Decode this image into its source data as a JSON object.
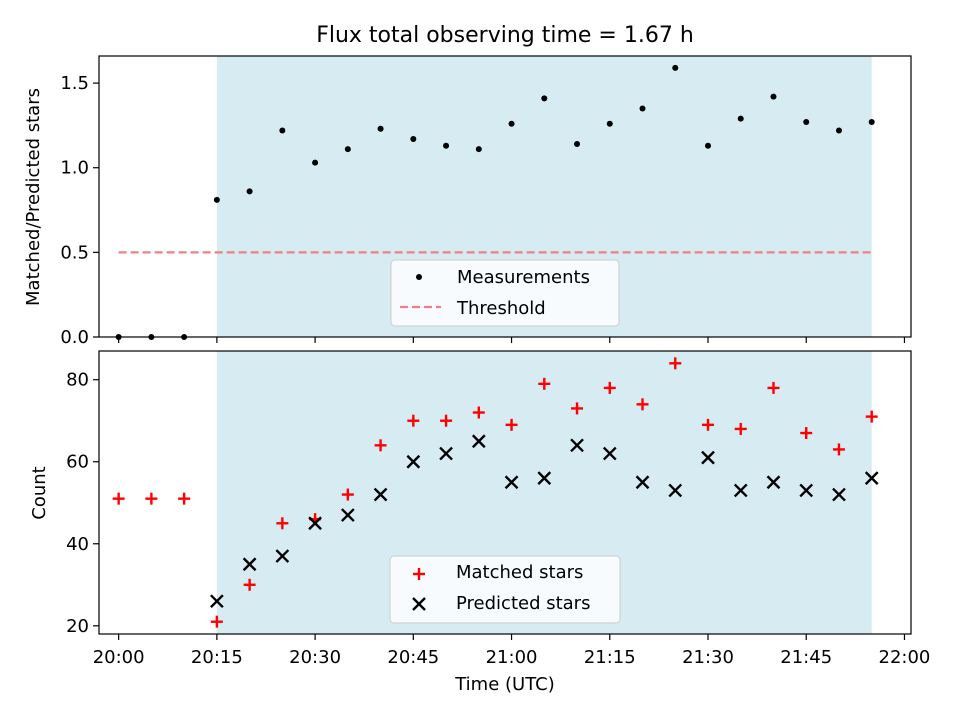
{
  "chart_data": [
    {
      "type": "scatter",
      "title": "Flux total observing time = 1.67 h",
      "xlabel": "",
      "ylabel": "Matched/Predicted stars",
      "xlim": [
        "19:57",
        "22:01"
      ],
      "ylim": [
        0,
        1.66
      ],
      "yticks": [
        "0.0",
        "0.5",
        "1.0",
        "1.5"
      ],
      "shaded_span": [
        "20:15",
        "21:55"
      ],
      "shade_color": "#add8e6",
      "legend_position": "lower center",
      "series": [
        {
          "name": "Measurements",
          "marker": "dot",
          "color": "#000000",
          "x": [
            "20:00",
            "20:05",
            "20:10",
            "20:15",
            "20:20",
            "20:25",
            "20:30",
            "20:35",
            "20:40",
            "20:45",
            "20:50",
            "20:55",
            "21:00",
            "21:05",
            "21:10",
            "21:15",
            "21:20",
            "21:25",
            "21:30",
            "21:35",
            "21:40",
            "21:45",
            "21:50",
            "21:55"
          ],
          "y": [
            0.0,
            0.0,
            0.0,
            0.81,
            0.86,
            1.22,
            1.03,
            1.11,
            1.23,
            1.17,
            1.13,
            1.11,
            1.26,
            1.41,
            1.14,
            1.26,
            1.35,
            1.59,
            1.13,
            1.29,
            1.42,
            1.27,
            1.22,
            1.27
          ]
        },
        {
          "name": "Threshold",
          "marker": "dashed-line",
          "color": "#f08080",
          "x": [
            "20:00",
            "21:55"
          ],
          "y": [
            0.5,
            0.5
          ]
        }
      ]
    },
    {
      "type": "scatter",
      "title": "",
      "xlabel": "Time (UTC)",
      "ylabel": "Count",
      "xlim": [
        "19:57",
        "22:01"
      ],
      "ylim": [
        18,
        87
      ],
      "yticks": [
        "20",
        "40",
        "60",
        "80"
      ],
      "xticks": [
        "20:00",
        "20:15",
        "20:30",
        "20:45",
        "21:00",
        "21:15",
        "21:30",
        "21:45",
        "22:00"
      ],
      "shaded_span": [
        "20:15",
        "21:55"
      ],
      "shade_color": "#add8e6",
      "legend_position": "lower center",
      "series": [
        {
          "name": "Matched stars",
          "marker": "plus",
          "color": "#ff0000",
          "x": [
            "20:00",
            "20:05",
            "20:10",
            "20:15",
            "20:20",
            "20:25",
            "20:30",
            "20:35",
            "20:40",
            "20:45",
            "20:50",
            "20:55",
            "21:00",
            "21:05",
            "21:10",
            "21:15",
            "21:20",
            "21:25",
            "21:30",
            "21:35",
            "21:40",
            "21:45",
            "21:50",
            "21:55"
          ],
          "y": [
            51,
            51,
            51,
            21,
            30,
            45,
            46,
            52,
            64,
            70,
            70,
            72,
            69,
            79,
            73,
            78,
            74,
            84,
            69,
            68,
            78,
            67,
            63,
            71
          ]
        },
        {
          "name": "Predicted stars",
          "marker": "x",
          "color": "#000000",
          "x": [
            "20:15",
            "20:20",
            "20:25",
            "20:30",
            "20:35",
            "20:40",
            "20:45",
            "20:50",
            "20:55",
            "21:00",
            "21:05",
            "21:10",
            "21:15",
            "21:20",
            "21:25",
            "21:30",
            "21:35",
            "21:40",
            "21:45",
            "21:50",
            "21:55"
          ],
          "y": [
            26,
            35,
            37,
            45,
            47,
            52,
            60,
            62,
            65,
            55,
            56,
            64,
            62,
            55,
            53,
            61,
            53,
            55,
            53,
            52,
            56
          ]
        }
      ]
    }
  ]
}
